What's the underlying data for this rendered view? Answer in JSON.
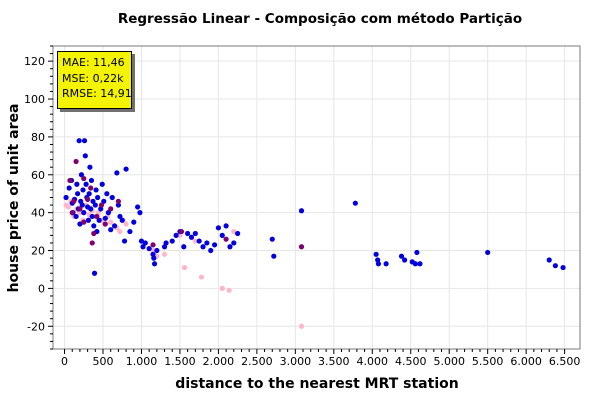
{
  "chart_data": {
    "type": "scatter",
    "title": "Regressão Linear - Composição com método Partição",
    "xlabel": "distance to the nearest MRT station",
    "ylabel": "house price of unit area",
    "xlim": [
      -150,
      6700
    ],
    "ylim": [
      -32,
      128
    ],
    "x_ticks": [
      0,
      500,
      1000,
      1500,
      2000,
      2500,
      3000,
      3500,
      4000,
      4500,
      5000,
      5500,
      6000,
      6500
    ],
    "x_tick_labels": [
      "0",
      "500",
      "1.000",
      "1.500",
      "2.000",
      "2.500",
      "3.000",
      "3.500",
      "4.000",
      "4.500",
      "5.000",
      "5.500",
      "6.000",
      "6.500"
    ],
    "y_ticks": [
      -20,
      0,
      20,
      40,
      60,
      80,
      100,
      120
    ],
    "y_tick_labels": [
      "-20",
      "0",
      "20",
      "40",
      "60",
      "80",
      "100",
      "120"
    ],
    "grid": true,
    "stats": [
      {
        "label": "MAE",
        "value": "11,46"
      },
      {
        "label": "MSE",
        "value": "0,22k"
      },
      {
        "label": "RMSE",
        "value": "14,91"
      }
    ],
    "series": [
      {
        "color": "#0000e0",
        "points": [
          [
            20,
            48
          ],
          [
            60,
            53
          ],
          [
            90,
            57
          ],
          [
            100,
            45
          ],
          [
            110,
            40
          ],
          [
            130,
            47
          ],
          [
            150,
            38
          ],
          [
            160,
            55
          ],
          [
            170,
            50
          ],
          [
            180,
            42
          ],
          [
            190,
            78
          ],
          [
            200,
            34
          ],
          [
            210,
            46
          ],
          [
            220,
            60
          ],
          [
            230,
            44
          ],
          [
            240,
            52
          ],
          [
            250,
            40
          ],
          [
            260,
            78
          ],
          [
            270,
            70
          ],
          [
            280,
            55
          ],
          [
            290,
            48
          ],
          [
            300,
            43
          ],
          [
            310,
            36
          ],
          [
            320,
            50
          ],
          [
            330,
            64
          ],
          [
            340,
            42
          ],
          [
            350,
            57
          ],
          [
            360,
            38
          ],
          [
            370,
            46
          ],
          [
            380,
            33
          ],
          [
            390,
            8
          ],
          [
            400,
            44
          ],
          [
            410,
            52
          ],
          [
            420,
            30
          ],
          [
            430,
            48
          ],
          [
            450,
            36
          ],
          [
            470,
            42
          ],
          [
            490,
            55
          ],
          [
            510,
            46
          ],
          [
            530,
            37
          ],
          [
            550,
            50
          ],
          [
            570,
            40
          ],
          [
            600,
            31
          ],
          [
            620,
            48
          ],
          [
            650,
            33
          ],
          [
            680,
            61
          ],
          [
            700,
            44
          ],
          [
            720,
            38
          ],
          [
            750,
            36
          ],
          [
            780,
            25
          ],
          [
            800,
            63
          ],
          [
            850,
            30
          ],
          [
            900,
            35
          ],
          [
            950,
            43
          ],
          [
            980,
            40
          ],
          [
            1000,
            25
          ],
          [
            1020,
            22
          ],
          [
            1050,
            24
          ],
          [
            1100,
            21
          ],
          [
            1150,
            18
          ],
          [
            1160,
            16
          ],
          [
            1170,
            13
          ],
          [
            1200,
            20
          ],
          [
            1300,
            22
          ],
          [
            1320,
            24
          ],
          [
            1400,
            25
          ],
          [
            1450,
            28
          ],
          [
            1500,
            30
          ],
          [
            1550,
            22
          ],
          [
            1600,
            29
          ],
          [
            1650,
            27
          ],
          [
            1700,
            29
          ],
          [
            1750,
            25
          ],
          [
            1800,
            22
          ],
          [
            1850,
            24
          ],
          [
            1900,
            20
          ],
          [
            1950,
            23
          ],
          [
            2000,
            32
          ],
          [
            2050,
            28
          ],
          [
            2100,
            33
          ],
          [
            2150,
            22
          ],
          [
            2200,
            24
          ],
          [
            2250,
            29
          ],
          [
            2700,
            26
          ],
          [
            2720,
            17
          ],
          [
            3080,
            41
          ],
          [
            3780,
            45
          ],
          [
            4050,
            18
          ],
          [
            4070,
            15
          ],
          [
            4080,
            13
          ],
          [
            4180,
            13
          ],
          [
            4380,
            17
          ],
          [
            4420,
            15
          ],
          [
            4520,
            14
          ],
          [
            4560,
            13
          ],
          [
            4580,
            19
          ],
          [
            4620,
            13
          ],
          [
            5500,
            19
          ],
          [
            6300,
            15
          ],
          [
            6380,
            12
          ],
          [
            6480,
            11
          ]
        ]
      },
      {
        "color": "#800070",
        "points": [
          [
            70,
            57
          ],
          [
            120,
            46
          ],
          [
            150,
            67
          ],
          [
            200,
            42
          ],
          [
            250,
            58
          ],
          [
            300,
            47
          ],
          [
            340,
            53
          ],
          [
            380,
            29
          ],
          [
            420,
            38
          ],
          [
            480,
            44
          ],
          [
            530,
            34
          ],
          [
            600,
            42
          ],
          [
            700,
            46
          ],
          [
            1150,
            23
          ],
          [
            1520,
            30
          ],
          [
            2100,
            26
          ],
          [
            3080,
            22
          ],
          [
            100,
            40
          ],
          [
            250,
            35
          ],
          [
            360,
            24
          ]
        ]
      },
      {
        "color": "#ffb6c8",
        "points": [
          [
            20,
            44
          ],
          [
            50,
            43
          ],
          [
            80,
            46
          ],
          [
            120,
            38
          ],
          [
            160,
            42
          ],
          [
            200,
            40
          ],
          [
            240,
            36
          ],
          [
            280,
            44
          ],
          [
            320,
            39
          ],
          [
            360,
            41
          ],
          [
            400,
            38
          ],
          [
            440,
            40
          ],
          [
            480,
            36
          ],
          [
            520,
            34
          ],
          [
            560,
            38
          ],
          [
            600,
            35
          ],
          [
            680,
            32
          ],
          [
            720,
            30
          ],
          [
            760,
            36
          ],
          [
            800,
            34
          ],
          [
            1150,
            20
          ],
          [
            1200,
            17
          ],
          [
            1300,
            18
          ],
          [
            1500,
            28
          ],
          [
            1560,
            11
          ],
          [
            1700,
            25
          ],
          [
            1780,
            6
          ],
          [
            2050,
            0
          ],
          [
            2140,
            -1
          ],
          [
            2200,
            30
          ],
          [
            3080,
            -20
          ]
        ]
      }
    ]
  }
}
